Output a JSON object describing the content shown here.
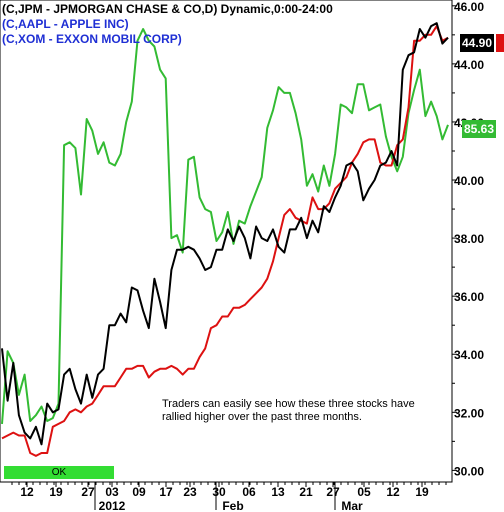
{
  "chart_data": {
    "type": "line",
    "legend": [
      {
        "label": "(C,JPM - JPMORGAN CHASE & CO,D) Dynamic,0:00-24:00",
        "color": "#000000"
      },
      {
        "label": "(C,AAPL - APPLE INC)",
        "color": "#1f2fd4"
      },
      {
        "label": "(C,XOM - EXXON MOBIL CORP)",
        "color": "#1f2fd4"
      }
    ],
    "x_tick_labels": [
      "12",
      "19",
      "27",
      "03",
      "09",
      "17",
      "23",
      "30",
      "06",
      "13",
      "21",
      "27",
      "05",
      "12",
      "19"
    ],
    "x_period_labels": [
      "2012",
      "Feb",
      "Mar"
    ],
    "ylim": [
      29.6,
      46.2
    ],
    "y_ticks": [
      30.0,
      32.0,
      34.0,
      36.0,
      38.0,
      40.0,
      42.0,
      44.0,
      46.0
    ],
    "y_tick_labels": [
      "30.00",
      "32.00",
      "34.00",
      "36.00",
      "38.00",
      "40.00",
      "42.00",
      "44.00",
      "46.00"
    ],
    "grid": false,
    "series": [
      {
        "name": "JPM",
        "color": "#000000",
        "last_label": "44.90",
        "values": [
          34.2,
          32.4,
          33.7,
          31.9,
          31.3,
          31.1,
          31.5,
          30.9,
          32.3,
          32.0,
          32.1,
          33.3,
          33.5,
          32.8,
          32.3,
          33.3,
          32.5,
          33.3,
          33.5,
          35.0,
          35.0,
          35.4,
          35.1,
          36.3,
          36.2,
          35.5,
          34.9,
          36.6,
          35.8,
          34.9,
          36.9,
          37.6,
          37.6,
          37.7,
          37.6,
          37.3,
          36.9,
          37.0,
          37.6,
          37.6,
          38.3,
          37.9,
          38.4,
          38.0,
          37.3,
          38.4,
          38.0,
          37.9,
          38.3,
          37.7,
          37.5,
          38.3,
          38.3,
          38.7,
          38.0,
          38.6,
          38.2,
          39.1,
          38.9,
          39.4,
          39.8,
          40.5,
          40.6,
          40.3,
          39.3,
          39.7,
          40.0,
          40.5,
          40.6,
          41.0,
          40.5,
          43.8,
          44.3,
          44.4,
          45.2,
          44.9,
          45.3,
          45.4,
          44.7,
          44.9
        ]
      },
      {
        "name": "AAPL",
        "color": "#dd1111",
        "last_label": "",
        "values": [
          31.1,
          31.2,
          31.3,
          31.2,
          31.2,
          30.6,
          30.5,
          30.6,
          30.6,
          31.5,
          31.6,
          31.7,
          32.0,
          32.1,
          32.0,
          32.2,
          32.3,
          32.6,
          32.9,
          32.9,
          32.9,
          33.2,
          33.5,
          33.5,
          33.6,
          33.6,
          33.2,
          33.4,
          33.5,
          33.5,
          33.6,
          33.5,
          33.3,
          33.5,
          33.5,
          33.9,
          34.2,
          34.9,
          35.0,
          35.3,
          35.3,
          35.6,
          35.6,
          35.7,
          35.9,
          36.1,
          36.3,
          36.6,
          37.2,
          38.0,
          38.8,
          39.0,
          38.7,
          38.6,
          38.5,
          39.4,
          39.0,
          39.0,
          39.2,
          39.7,
          39.9,
          40.1,
          40.6,
          40.9,
          41.3,
          41.4,
          41.4,
          40.6,
          40.5,
          40.5,
          41.2,
          41.4,
          42.5,
          44.8,
          44.8,
          45.0,
          45.0,
          45.3,
          44.8,
          44.9
        ]
      },
      {
        "name": "XOM",
        "color": "#33bb33",
        "last_label": "85.63",
        "values": [
          31.6,
          34.1,
          33.7,
          32.6,
          33.3,
          31.7,
          31.9,
          32.2,
          31.7,
          31.8,
          32.3,
          41.2,
          41.3,
          41.1,
          39.5,
          42.1,
          41.7,
          40.9,
          41.3,
          40.6,
          40.5,
          40.9,
          42.0,
          42.7,
          44.8,
          45.2,
          44.8,
          44.6,
          43.8,
          43.5,
          38.0,
          38.1,
          37.5,
          40.7,
          40.8,
          39.4,
          39.0,
          38.9,
          37.9,
          38.2,
          38.9,
          37.8,
          38.6,
          38.5,
          39.1,
          39.6,
          40.1,
          41.8,
          42.4,
          43.2,
          43.0,
          43.0,
          42.3,
          41.4,
          39.8,
          40.2,
          39.6,
          40.5,
          39.8,
          40.9,
          42.6,
          42.5,
          42.3,
          43.3,
          43.3,
          42.4,
          42.5,
          42.6,
          41.5,
          40.8,
          40.3,
          40.8,
          42.3,
          43.1,
          43.8,
          42.2,
          42.7,
          42.2,
          41.4,
          41.9
        ]
      }
    ],
    "annotations": [
      "Traders can easily see how these three stocks have rallied higher over the past three months."
    ]
  },
  "status": {
    "ok_label": "OK"
  }
}
